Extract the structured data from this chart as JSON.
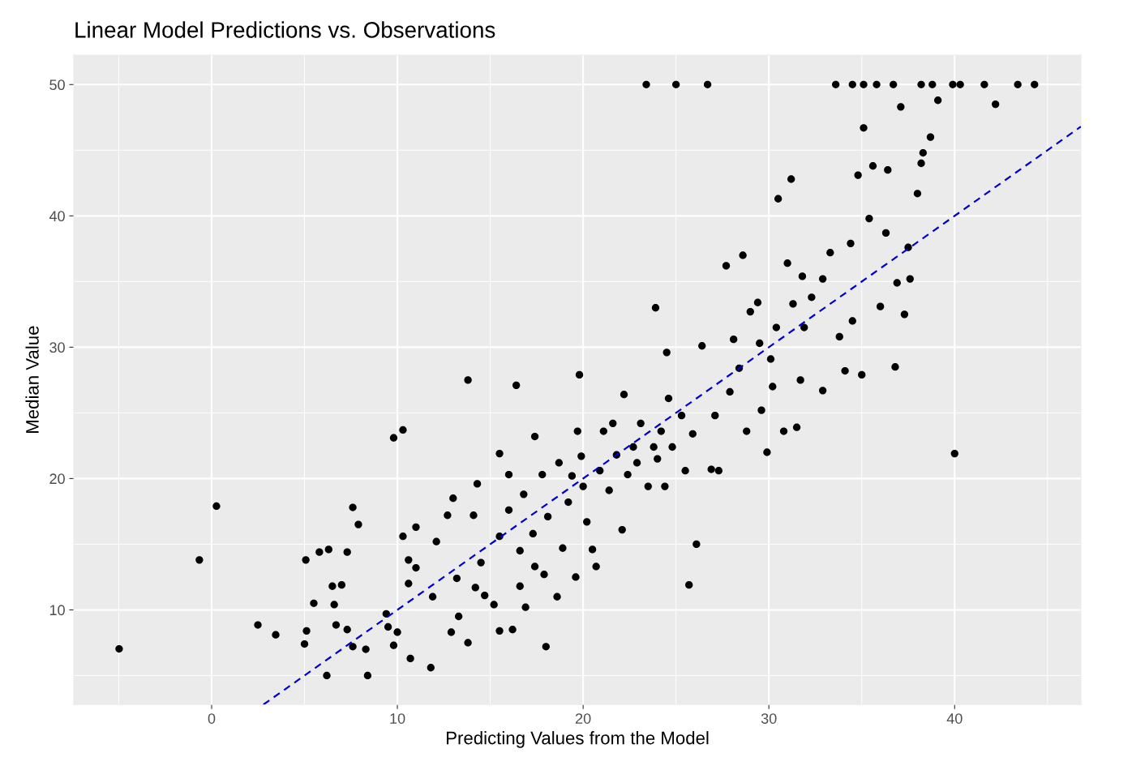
{
  "chart_data": {
    "type": "scatter",
    "title": "Linear Model Predictions vs. Observations",
    "xlabel": "Predicting Values from the Model",
    "ylabel": "Median Value",
    "xlim": [
      -7.42,
      46.8
    ],
    "ylim": [
      2.79,
      52.24
    ],
    "xticks": [
      {
        "value": -5,
        "label": null
      },
      0,
      {
        "value": 5,
        "label": null
      },
      10,
      {
        "value": 15,
        "label": null
      },
      20,
      {
        "value": 25,
        "label": null
      },
      30,
      {
        "value": 35,
        "label": null
      },
      40,
      {
        "value": 45,
        "label": null
      }
    ],
    "yticks": [
      {
        "value": 5,
        "label": null
      },
      10,
      {
        "value": 15,
        "label": null
      },
      20,
      {
        "value": 25,
        "label": null
      },
      30,
      {
        "value": 35,
        "label": null
      },
      40,
      {
        "value": 45,
        "label": null
      },
      50
    ],
    "grid": true,
    "marker": "circle",
    "series": [
      {
        "color": "#000000",
        "x": [
          -4.98,
          -0.66,
          0.26,
          2.49,
          3.45,
          5.07,
          5.11,
          5.0,
          5.5,
          5.8,
          6.3,
          6.2,
          6.5,
          6.6,
          6.7,
          7.0,
          7.3,
          7.3,
          7.6,
          7.9,
          7.6,
          8.3,
          8.4,
          9.4,
          9.5,
          9.8,
          9.8,
          10.0,
          10.3,
          10.3,
          10.6,
          10.6,
          10.7,
          11.0,
          11.0,
          11.8,
          11.9,
          12.1,
          12.7,
          12.9,
          13.0,
          13.3,
          13.2,
          13.8,
          13.8,
          14.1,
          14.2,
          14.3,
          14.5,
          14.7,
          15.2,
          15.5,
          15.5,
          15.5,
          16.0,
          16.0,
          16.2,
          16.4,
          16.6,
          16.6,
          16.9,
          16.8,
          17.3,
          17.4,
          17.4,
          17.8,
          17.9,
          18.0,
          18.1,
          18.6,
          18.7,
          18.9,
          19.2,
          19.4,
          19.6,
          19.7,
          19.8,
          19.9,
          20.0,
          20.2,
          20.5,
          20.7,
          20.9,
          21.1,
          21.4,
          21.6,
          21.8,
          22.1,
          22.2,
          22.4,
          22.7,
          22.9,
          23.1,
          23.4,
          23.5,
          23.8,
          23.9,
          24.0,
          24.2,
          24.4,
          24.5,
          24.6,
          25.0,
          24.8,
          25.3,
          25.5,
          25.7,
          26.1,
          25.9,
          26.4,
          26.7,
          26.9,
          27.1,
          27.3,
          27.7,
          27.9,
          28.1,
          28.4,
          28.6,
          28.8,
          29.0,
          29.4,
          29.5,
          29.6,
          29.9,
          30.1,
          30.2,
          30.4,
          30.5,
          30.8,
          31.0,
          31.2,
          31.3,
          31.5,
          31.7,
          31.8,
          31.9,
          32.3,
          32.9,
          32.9,
          33.3,
          33.6,
          33.8,
          34.1,
          34.4,
          34.5,
          34.5,
          34.8,
          35.0,
          35.1,
          35.1,
          35.4,
          35.6,
          35.8,
          36.0,
          36.3,
          36.4,
          36.7,
          36.8,
          36.9,
          37.1,
          37.3,
          37.5,
          37.6,
          38.0,
          38.2,
          38.2,
          38.3,
          38.7,
          38.8,
          39.1,
          39.9,
          40.0,
          40.3,
          41.6,
          42.2,
          43.4,
          44.3
        ],
        "values": [
          7.03,
          13.8,
          17.9,
          8.85,
          8.1,
          13.8,
          8.4,
          7.4,
          10.5,
          14.4,
          14.6,
          5.0,
          11.8,
          10.4,
          8.85,
          11.9,
          14.4,
          8.5,
          17.8,
          16.5,
          7.2,
          7.0,
          5.0,
          9.7,
          8.7,
          7.3,
          23.1,
          8.3,
          23.7,
          15.6,
          12.0,
          13.8,
          6.3,
          16.3,
          13.2,
          5.6,
          11.0,
          15.2,
          17.2,
          8.3,
          18.5,
          9.5,
          12.4,
          27.5,
          7.5,
          17.2,
          11.7,
          19.6,
          13.6,
          11.1,
          10.4,
          8.4,
          21.9,
          15.6,
          20.3,
          17.6,
          8.5,
          27.1,
          14.5,
          11.8,
          10.2,
          18.8,
          15.8,
          23.2,
          13.3,
          20.3,
          12.7,
          7.2,
          17.1,
          11.0,
          21.2,
          14.7,
          18.2,
          20.2,
          12.5,
          23.6,
          27.9,
          21.7,
          19.4,
          16.7,
          14.6,
          13.3,
          20.6,
          23.6,
          19.1,
          24.2,
          21.8,
          16.1,
          26.4,
          20.3,
          22.4,
          21.2,
          24.2,
          50,
          19.4,
          22.4,
          33.0,
          21.5,
          23.6,
          19.4,
          29.6,
          26.1,
          50,
          22.4,
          24.8,
          20.6,
          11.9,
          15.0,
          23.4,
          30.1,
          50,
          20.7,
          24.8,
          20.6,
          36.2,
          26.6,
          30.6,
          28.4,
          37.0,
          23.6,
          32.7,
          33.4,
          30.3,
          25.2,
          22.0,
          29.1,
          27.0,
          31.5,
          41.3,
          23.6,
          36.4,
          42.8,
          33.3,
          23.9,
          27.5,
          35.4,
          31.5,
          33.8,
          35.2,
          26.7,
          37.2,
          50,
          30.8,
          28.2,
          37.9,
          50,
          32.0,
          43.1,
          27.9,
          46.7,
          50,
          39.8,
          43.8,
          50,
          33.1,
          38.7,
          43.5,
          50,
          28.5,
          34.9,
          48.3,
          32.5,
          37.6,
          35.2,
          41.7,
          50,
          44.0,
          44.8,
          46.0,
          50,
          48.8,
          50,
          21.9,
          50,
          50,
          48.5,
          50,
          50
        ]
      },
      {
        "type": "line",
        "color": "#0000cd",
        "line_style": "dashed",
        "marker": "none",
        "x": [
          2.79,
          46.8
        ],
        "values": [
          2.79,
          46.8
        ]
      }
    ]
  }
}
